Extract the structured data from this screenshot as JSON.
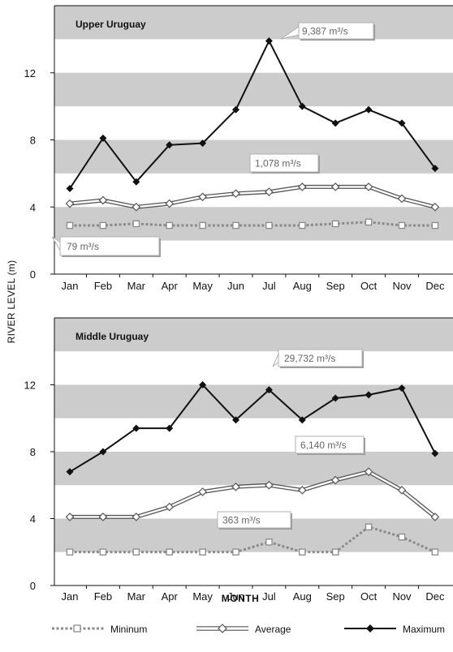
{
  "chart_data": {
    "type": "line",
    "ylabel": "RIVER LEVEL (m)",
    "xlabel": "MONTH",
    "categories": [
      "Jan",
      "Feb",
      "Mar",
      "Apr",
      "May",
      "Jun",
      "Jul",
      "Aug",
      "Sep",
      "Oct",
      "Nov",
      "Dec"
    ],
    "ylim": [
      0,
      16
    ],
    "yticks": [
      "0",
      "4",
      "8",
      "12"
    ],
    "shaded_bands": [
      [
        2,
        4
      ],
      [
        6,
        8
      ],
      [
        10,
        12
      ],
      [
        14,
        16
      ]
    ],
    "legend": {
      "placement": "bottom",
      "entries": [
        "Mininum",
        "Average",
        "Maximum"
      ]
    },
    "colors": {
      "maximum": "#111111",
      "average": "#555555",
      "minimum": "#8a8a8a",
      "band": "#cccccc",
      "annotation_border": "#b0b0b0"
    },
    "panels": [
      {
        "title": "Upper Uruguay",
        "series": [
          {
            "name": "Maximum",
            "values": [
              5.1,
              8.1,
              5.5,
              7.7,
              7.8,
              9.8,
              13.9,
              10.0,
              9.0,
              9.8,
              9.0,
              6.3
            ]
          },
          {
            "name": "Average",
            "values": [
              4.2,
              4.4,
              4.0,
              4.2,
              4.6,
              4.8,
              4.9,
              5.2,
              5.2,
              5.2,
              4.5,
              4.0
            ]
          },
          {
            "name": "Mininum",
            "values": [
              2.9,
              2.9,
              3.0,
              2.9,
              2.9,
              2.9,
              2.9,
              2.9,
              3.0,
              3.1,
              2.9,
              2.9
            ]
          }
        ],
        "annotations": [
          {
            "label": "9,387 m³/s",
            "series": "Maximum",
            "month": "Jul"
          },
          {
            "label": "1,078 m³/s",
            "series": "Average",
            "month": "Jul"
          },
          {
            "label": "79 m³/s",
            "series": "Mininum",
            "month": "Jan"
          }
        ]
      },
      {
        "title": "Middle Uruguay",
        "series": [
          {
            "name": "Maximum",
            "values": [
              6.8,
              8.0,
              9.4,
              9.4,
              12.0,
              9.9,
              11.7,
              9.9,
              11.2,
              11.4,
              11.8,
              7.9
            ]
          },
          {
            "name": "Average",
            "values": [
              4.1,
              4.1,
              4.1,
              4.7,
              5.6,
              5.9,
              6.0,
              5.7,
              6.3,
              6.8,
              5.7,
              4.1
            ]
          },
          {
            "name": "Mininum",
            "values": [
              2.0,
              2.0,
              2.0,
              2.0,
              2.0,
              2.0,
              2.6,
              2.0,
              2.0,
              3.5,
              2.9,
              2.0
            ]
          }
        ],
        "annotations": [
          {
            "label": "29,732 m³/s",
            "series": "Maximum",
            "month": "Jul"
          },
          {
            "label": "6,140 m³/s",
            "series": "Average",
            "month": "Nov"
          },
          {
            "label": "363 m³/s",
            "series": "Mininum",
            "month": "Jun"
          }
        ]
      }
    ]
  }
}
